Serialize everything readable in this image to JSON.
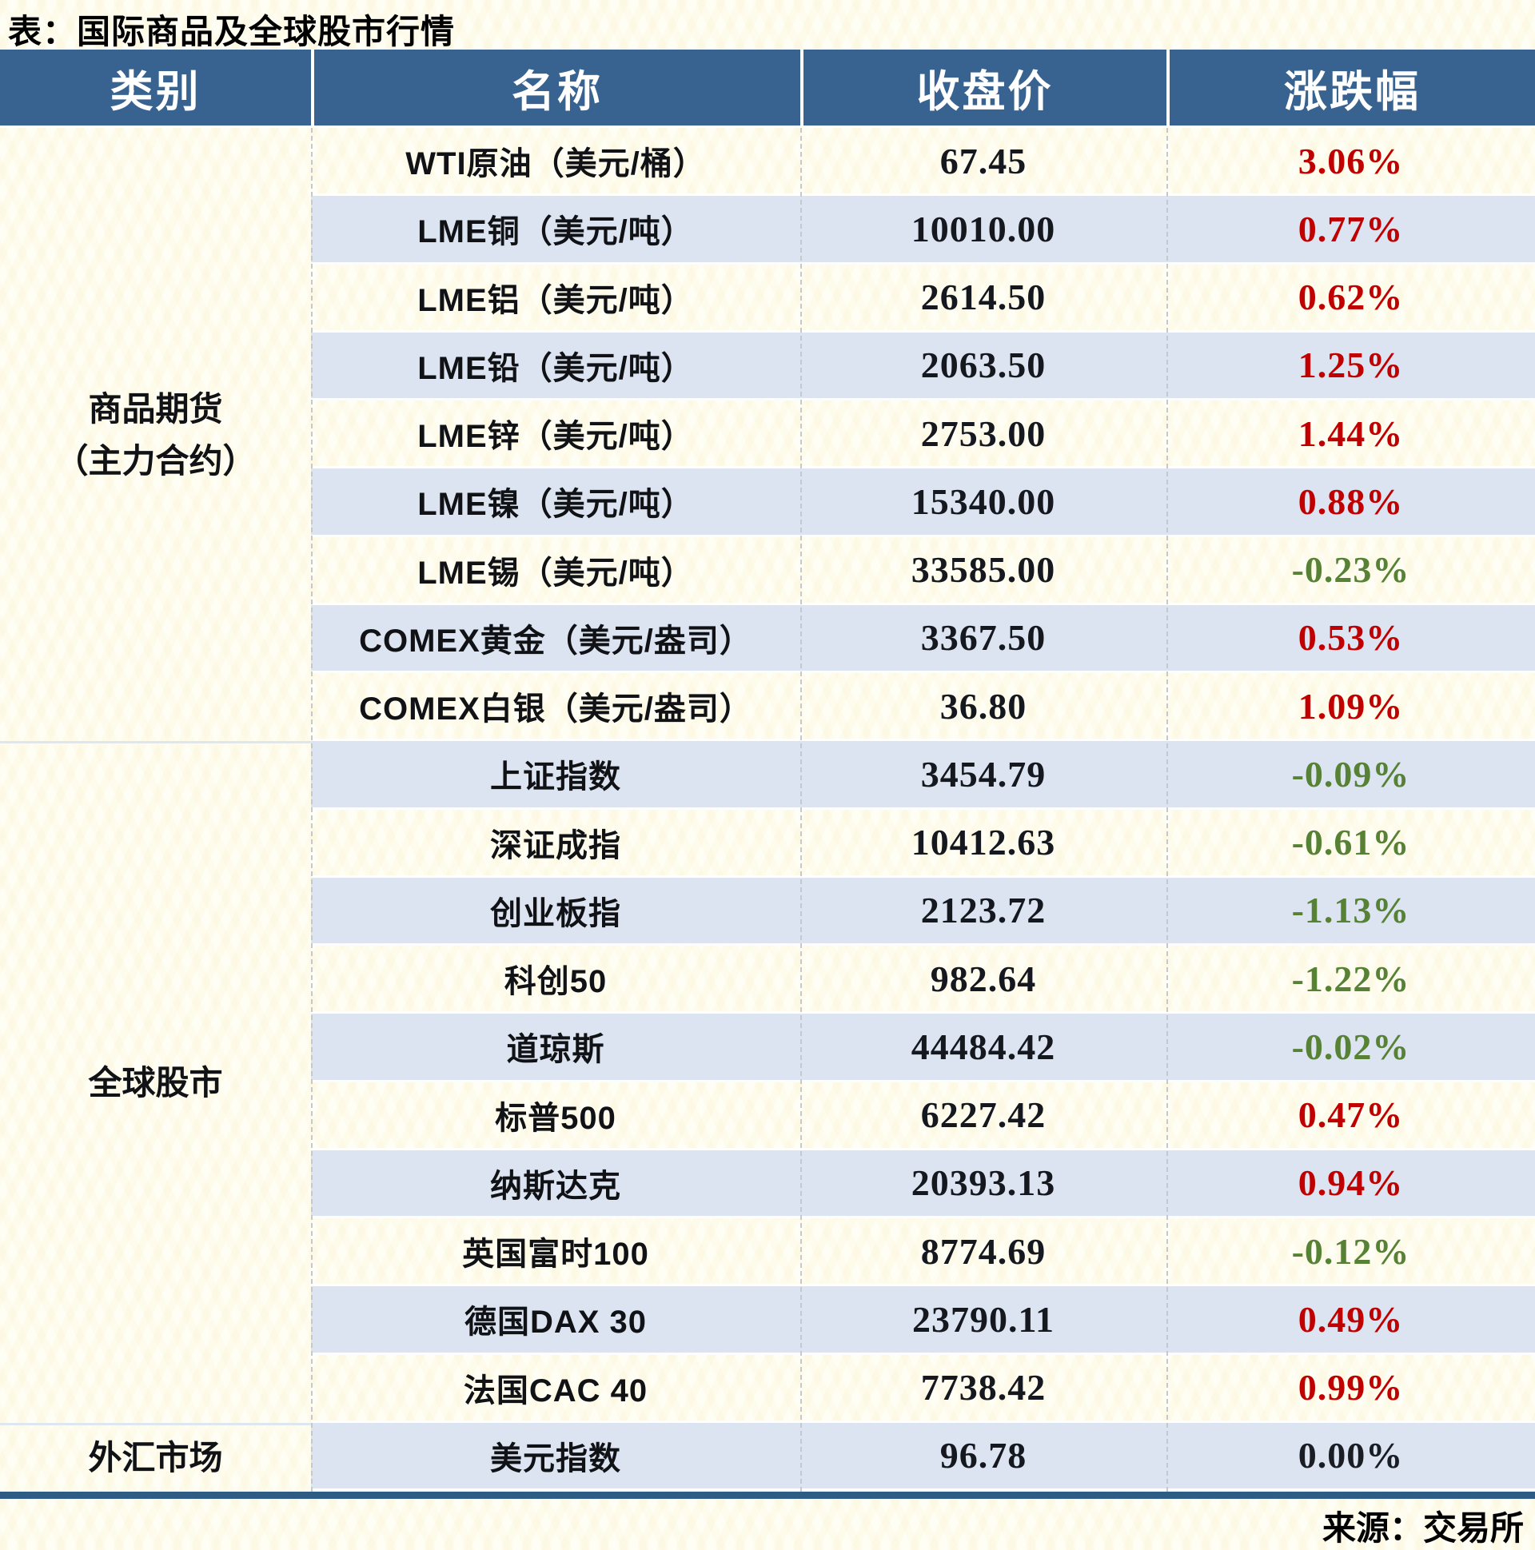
{
  "title": "表：国际商品及全球股市行情",
  "source_note": "来源：交易所",
  "colors": {
    "bg_cream": "#FFFEF4",
    "header_blue": "#386390",
    "row_blue": "#DBE4F0",
    "red": "#C00000",
    "green": "#578235",
    "ink": "#15181E",
    "bottom_bar": "#2F5C85",
    "divider_dash": "#C4C9D0",
    "cat_sep": "#DEE7F1"
  },
  "chart_data": {
    "type": "table",
    "title": "表：国际商品及全球股市行情",
    "columns": [
      "类别",
      "名称",
      "收盘价",
      "涨跌幅"
    ],
    "sections": [
      {
        "category": "商品期货（主力合约）",
        "category_lines": [
          "商品期货",
          "（主力合约）"
        ],
        "rows": [
          {
            "name": "WTI原油（美元/桶）",
            "close": "67.45",
            "change": "3.06%",
            "dir": "up"
          },
          {
            "name": "LME铜（美元/吨）",
            "close": "10010.00",
            "change": "0.77%",
            "dir": "up"
          },
          {
            "name": "LME铝（美元/吨）",
            "close": "2614.50",
            "change": "0.62%",
            "dir": "up"
          },
          {
            "name": "LME铅（美元/吨）",
            "close": "2063.50",
            "change": "1.25%",
            "dir": "up"
          },
          {
            "name": "LME锌（美元/吨）",
            "close": "2753.00",
            "change": "1.44%",
            "dir": "up"
          },
          {
            "name": "LME镍（美元/吨）",
            "close": "15340.00",
            "change": "0.88%",
            "dir": "up"
          },
          {
            "name": "LME锡（美元/吨）",
            "close": "33585.00",
            "change": "-0.23%",
            "dir": "down"
          },
          {
            "name": "COMEX黄金（美元/盎司）",
            "close": "3367.50",
            "change": "0.53%",
            "dir": "up"
          },
          {
            "name": "COMEX白银（美元/盎司）",
            "close": "36.80",
            "change": "1.09%",
            "dir": "up"
          }
        ]
      },
      {
        "category": "全球股市",
        "category_lines": [
          "全球股市"
        ],
        "rows": [
          {
            "name": "上证指数",
            "close": "3454.79",
            "change": "-0.09%",
            "dir": "down"
          },
          {
            "name": "深证成指",
            "close": "10412.63",
            "change": "-0.61%",
            "dir": "down"
          },
          {
            "name": "创业板指",
            "close": "2123.72",
            "change": "-1.13%",
            "dir": "down"
          },
          {
            "name": "科创50",
            "close": "982.64",
            "change": "-1.22%",
            "dir": "down"
          },
          {
            "name": "道琼斯",
            "close": "44484.42",
            "change": "-0.02%",
            "dir": "down"
          },
          {
            "name": "标普500",
            "close": "6227.42",
            "change": "0.47%",
            "dir": "up"
          },
          {
            "name": "纳斯达克",
            "close": "20393.13",
            "change": "0.94%",
            "dir": "up"
          },
          {
            "name": "英国富时100",
            "close": "8774.69",
            "change": "-0.12%",
            "dir": "down"
          },
          {
            "name": "德国DAX 30",
            "close": "23790.11",
            "change": "0.49%",
            "dir": "up"
          },
          {
            "name": "法国CAC 40",
            "close": "7738.42",
            "change": "0.99%",
            "dir": "up"
          }
        ]
      },
      {
        "category": "外汇市场",
        "category_lines": [
          "外汇市场"
        ],
        "rows": [
          {
            "name": "美元指数",
            "close": "96.78",
            "change": "0.00%",
            "dir": "flat"
          }
        ]
      }
    ],
    "footnote": "来源：交易所"
  }
}
